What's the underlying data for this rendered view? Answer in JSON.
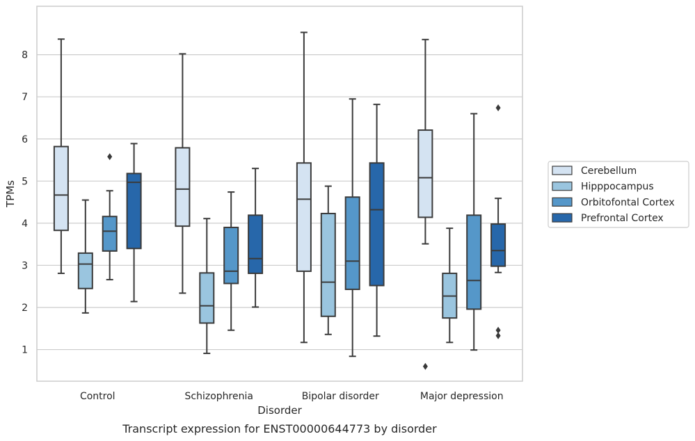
{
  "chart_data": {
    "type": "boxplot",
    "caption": "Transcript expression for ENST00000644773 by disorder",
    "xlabel": "Disorder",
    "ylabel": "TPMs",
    "ylim": [
      0.25,
      9.15
    ],
    "yticks": [
      1,
      2,
      3,
      4,
      5,
      6,
      7,
      8
    ],
    "grid": "horizontal",
    "legend_position": "right",
    "categories": [
      "Control",
      "Schizophrenia",
      "Bipolar disorder",
      "Major depression"
    ],
    "series": [
      {
        "name": "Cerebellum",
        "color": "#d4e3f2",
        "boxes": [
          {
            "whislo": 2.81,
            "q1": 3.83,
            "med": 4.67,
            "q3": 5.82,
            "whishi": 8.37,
            "fliers": []
          },
          {
            "whislo": 2.34,
            "q1": 3.93,
            "med": 4.81,
            "q3": 5.79,
            "whishi": 8.02,
            "fliers": []
          },
          {
            "whislo": 1.17,
            "q1": 2.86,
            "med": 4.57,
            "q3": 5.43,
            "whishi": 8.53,
            "fliers": []
          },
          {
            "whislo": 3.51,
            "q1": 4.14,
            "med": 5.08,
            "q3": 6.21,
            "whishi": 8.36,
            "fliers": [
              0.6
            ]
          }
        ]
      },
      {
        "name": "Hipppocampus",
        "color": "#9ac5df",
        "boxes": [
          {
            "whislo": 1.87,
            "q1": 2.45,
            "med": 3.03,
            "q3": 3.29,
            "whishi": 4.55,
            "fliers": []
          },
          {
            "whislo": 0.91,
            "q1": 1.63,
            "med": 2.04,
            "q3": 2.82,
            "whishi": 4.11,
            "fliers": []
          },
          {
            "whislo": 1.36,
            "q1": 1.79,
            "med": 2.6,
            "q3": 4.23,
            "whishi": 4.88,
            "fliers": []
          },
          {
            "whislo": 1.17,
            "q1": 1.75,
            "med": 2.27,
            "q3": 2.81,
            "whishi": 3.88,
            "fliers": []
          }
        ]
      },
      {
        "name": "Orbitofontal Cortex",
        "color": "#5597c9",
        "boxes": [
          {
            "whislo": 2.66,
            "q1": 3.34,
            "med": 3.81,
            "q3": 4.16,
            "whishi": 4.77,
            "fliers": [
              5.58
            ]
          },
          {
            "whislo": 1.46,
            "q1": 2.57,
            "med": 2.86,
            "q3": 3.9,
            "whishi": 4.74,
            "fliers": []
          },
          {
            "whislo": 0.84,
            "q1": 2.43,
            "med": 3.1,
            "q3": 4.62,
            "whishi": 6.95,
            "fliers": []
          },
          {
            "whislo": 0.99,
            "q1": 1.96,
            "med": 2.64,
            "q3": 4.19,
            "whishi": 6.6,
            "fliers": []
          }
        ]
      },
      {
        "name": "Prefrontal Cortex",
        "color": "#2767aa",
        "boxes": [
          {
            "whislo": 2.14,
            "q1": 3.4,
            "med": 4.97,
            "q3": 5.18,
            "whishi": 5.89,
            "fliers": []
          },
          {
            "whislo": 2.01,
            "q1": 2.81,
            "med": 3.16,
            "q3": 4.19,
            "whishi": 5.3,
            "fliers": []
          },
          {
            "whislo": 1.32,
            "q1": 2.52,
            "med": 4.32,
            "q3": 5.43,
            "whishi": 6.82,
            "fliers": []
          },
          {
            "whislo": 2.83,
            "q1": 2.98,
            "med": 3.35,
            "q3": 3.98,
            "whishi": 4.59,
            "fliers": [
              6.74,
              1.46,
              1.33
            ]
          }
        ]
      }
    ],
    "style": {
      "line_color": "#3a3a3a",
      "grid_color": "#cccccc",
      "frame_color": "#cccccc"
    }
  }
}
